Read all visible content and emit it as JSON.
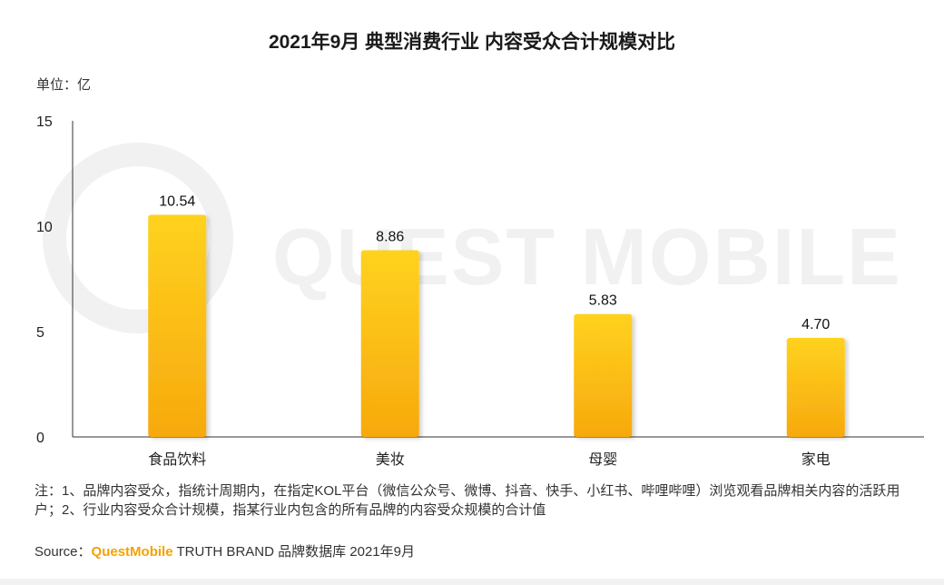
{
  "title": "2021年9月 典型消费行业 内容受众合计规模对比",
  "unit_label": "单位：亿",
  "watermark": "QUEST MOBILE",
  "note": "注：1、品牌内容受众，指统计周期内，在指定KOL平台（微信公众号、微博、抖音、快手、小红书、哔哩哔哩）浏览观看品牌相关内容的活跃用户；2、行业内容受众合计规模，指某行业内包含的所有品牌的内容受众规模的合计值",
  "source": {
    "prefix": "Source：",
    "brand": "QuestMobile",
    "suffix": " TRUTH BRAND 品牌数据库 2021年9月"
  },
  "colors": {
    "bar_top": "#ffd21f",
    "bar_bottom": "#f7a90d",
    "axis": "#333333"
  },
  "chart_data": {
    "type": "bar",
    "categories": [
      "食品饮料",
      "美妆",
      "母婴",
      "家电"
    ],
    "values": [
      10.54,
      8.86,
      5.83,
      4.7
    ],
    "value_labels": [
      "10.54",
      "8.86",
      "5.83",
      "4.70"
    ],
    "yticks": [
      0,
      5,
      10,
      15
    ],
    "ylim": [
      0,
      15
    ],
    "grid": false,
    "legend": "none"
  }
}
